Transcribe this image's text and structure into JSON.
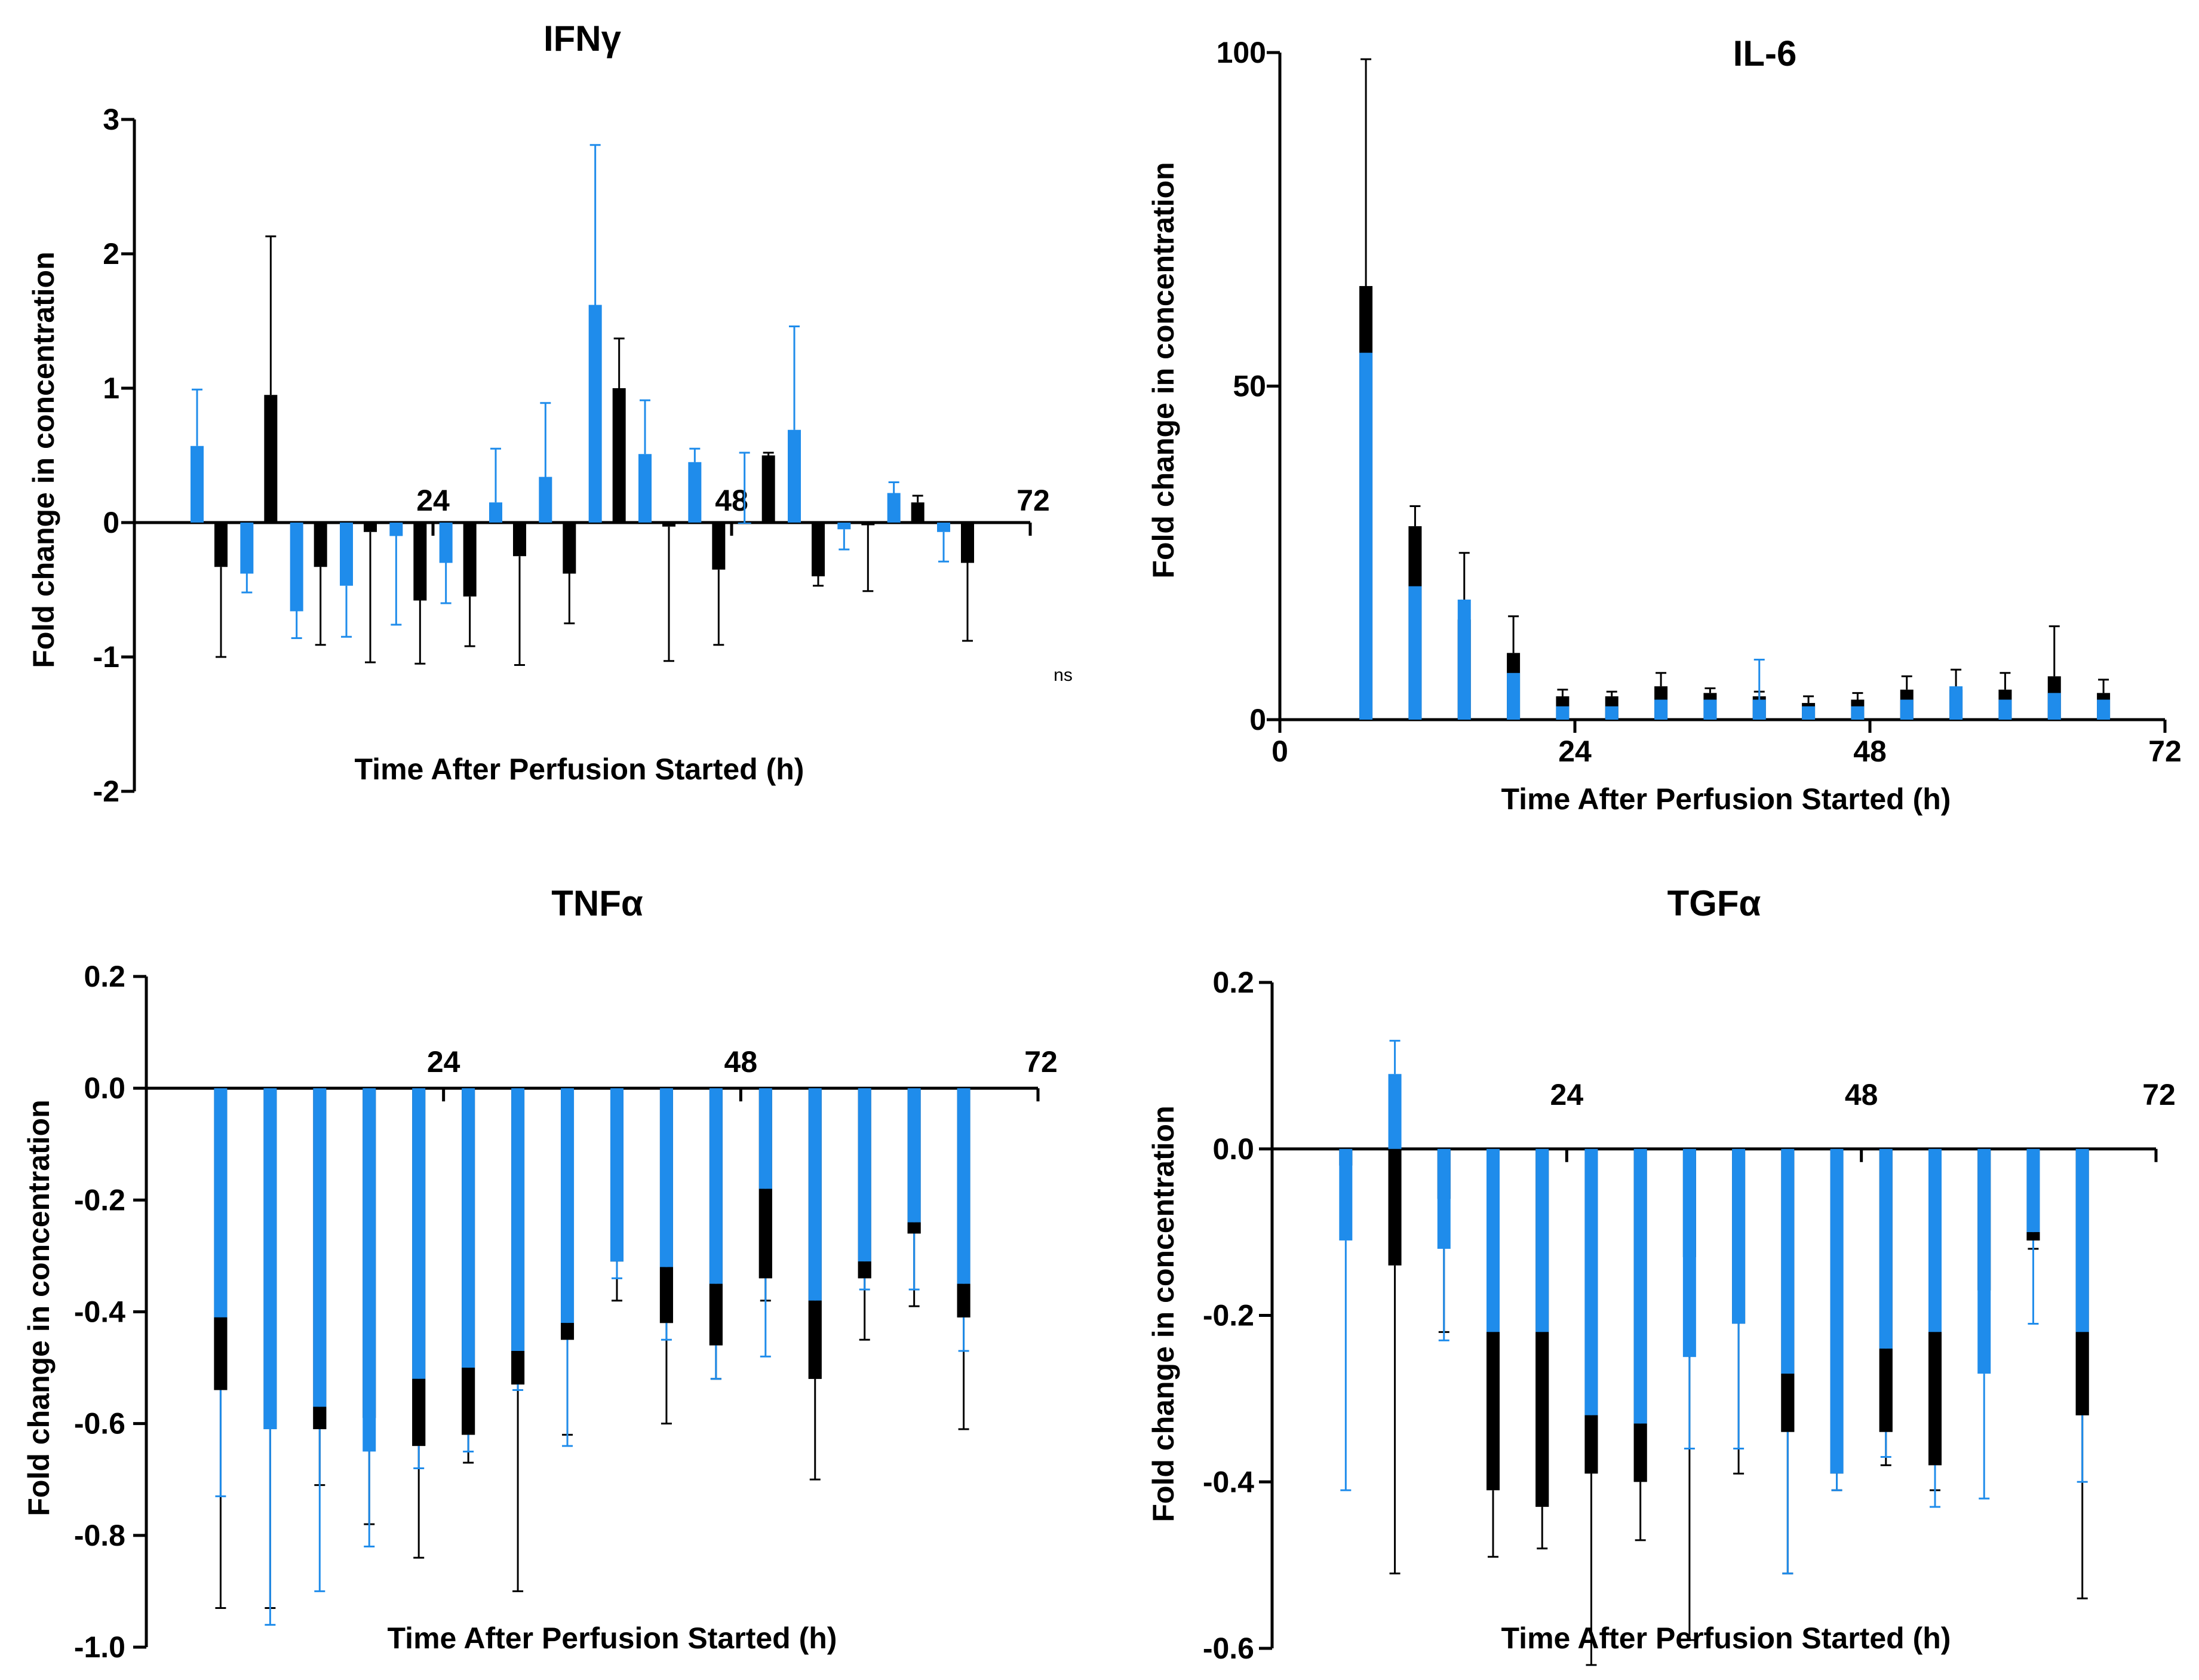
{
  "chart_data": [
    {
      "type": "bar",
      "title": "IFNγ",
      "xlabel": "Time After Perfusion Started (h)",
      "ylabel": "Fold change in concentration",
      "ylim": [
        -2,
        3
      ],
      "xlim": [
        0,
        72
      ],
      "x_ticks": [
        "24",
        "48",
        "72"
      ],
      "y_ticks": [
        "3",
        "2",
        "1",
        "0",
        "-1",
        "-2"
      ],
      "annotation": "ns",
      "colors": {
        "blue": "#1f8ceb",
        "black": "#000000"
      },
      "series": [
        {
          "name": "blue",
          "x": [
            6,
            10,
            14,
            18,
            22,
            26,
            30,
            34,
            38,
            42,
            46,
            50,
            54,
            58,
            62,
            66
          ],
          "values": [
            0.57,
            -0.38,
            -0.66,
            -0.47,
            -0.1,
            -0.3,
            0.15,
            0.34,
            1.62,
            0.51,
            0.45,
            0,
            0.69,
            -0.05,
            0.22,
            -0.07
          ],
          "err": [
            0.42,
            0.14,
            0.2,
            0.38,
            0.66,
            0.3,
            0.4,
            0.55,
            1.19,
            0.4,
            0.1,
            0.52,
            0.77,
            0.15,
            0.08,
            0.22
          ]
        },
        {
          "name": "black",
          "x": [
            6,
            10,
            14,
            18,
            22,
            26,
            30,
            34,
            38,
            42,
            46,
            50,
            54,
            58,
            62,
            66
          ],
          "values": [
            -0.33,
            0.95,
            -0.33,
            -0.07,
            -0.58,
            -0.55,
            -0.25,
            -0.38,
            1.0,
            -0.03,
            -0.35,
            0.5,
            -0.4,
            -0.02,
            0.15,
            -0.3
          ],
          "err": [
            0.67,
            1.18,
            0.58,
            0.97,
            0.47,
            0.37,
            0.81,
            0.37,
            0.37,
            1.0,
            0.56,
            0.02,
            0.07,
            0.49,
            0.05,
            0.58
          ]
        }
      ]
    },
    {
      "type": "bar",
      "title": "IL-6",
      "xlabel": "Time After Perfusion Started (h)",
      "ylabel": "Fold change in concentration",
      "ylim": [
        0,
        100
      ],
      "xlim": [
        0,
        72
      ],
      "x_ticks": [
        "0",
        "24",
        "48",
        "72"
      ],
      "y_ticks": [
        "100",
        "50",
        "0"
      ],
      "colors": {
        "blue": "#1f8ceb",
        "black": "#000000"
      },
      "series": [
        {
          "name": "blue",
          "x": [
            7,
            11,
            15,
            19,
            23,
            27,
            31,
            35,
            39,
            43,
            47,
            51,
            55,
            59,
            63,
            67
          ],
          "values": [
            55,
            20,
            18,
            7,
            2,
            2,
            3,
            3,
            3,
            2,
            2,
            3,
            5,
            3,
            4,
            3
          ],
          "err": [
            0,
            0,
            0,
            0,
            0,
            0,
            0,
            0,
            6,
            0,
            0,
            0,
            0,
            0,
            0,
            0
          ]
        },
        {
          "name": "black",
          "x": [
            7,
            11,
            15,
            19,
            23,
            27,
            31,
            35,
            39,
            43,
            47,
            51,
            55,
            59,
            63,
            67
          ],
          "values": [
            65,
            29,
            15,
            10,
            3.5,
            3.5,
            5,
            4,
            3.5,
            2.5,
            3,
            4.5,
            4.5,
            4.5,
            6.5,
            4
          ],
          "err": [
            34,
            3,
            10,
            5.5,
            1,
            0.7,
            2,
            0.7,
            0.7,
            1,
            1,
            2,
            3,
            2.5,
            7.5,
            2
          ]
        }
      ]
    },
    {
      "type": "bar",
      "title": "TNFα",
      "xlabel": "Time After Perfusion Started (h)",
      "ylabel": "Fold change in concentration",
      "ylim": [
        -1.0,
        0.2
      ],
      "xlim": [
        0,
        72
      ],
      "x_ticks": [
        "24",
        "48",
        "72"
      ],
      "y_ticks": [
        "0.2",
        "0.0",
        "-0.2",
        "-0.4",
        "-0.6",
        "-0.8",
        "-1.0"
      ],
      "colors": {
        "blue": "#1f8ceb",
        "black": "#000000"
      },
      "series": [
        {
          "name": "blue",
          "x": [
            6,
            10,
            14,
            18,
            22,
            26,
            30,
            34,
            38,
            42,
            46,
            50,
            54,
            58,
            62,
            66
          ],
          "values": [
            -0.41,
            -0.61,
            -0.57,
            -0.65,
            -0.52,
            -0.5,
            -0.47,
            -0.42,
            -0.31,
            -0.32,
            -0.35,
            -0.18,
            -0.38,
            -0.31,
            -0.24,
            -0.35
          ],
          "err": [
            0.32,
            0.35,
            0.33,
            0.17,
            0.16,
            0.15,
            0.07,
            0.22,
            0.03,
            0.13,
            0.17,
            0.3,
            0.07,
            0.05,
            0.12,
            0.12
          ]
        },
        {
          "name": "black",
          "x": [
            6,
            10,
            14,
            18,
            22,
            26,
            30,
            34,
            38,
            42,
            46,
            50,
            54,
            58,
            62,
            66
          ],
          "values": [
            -0.54,
            -0.61,
            -0.61,
            -0.59,
            -0.64,
            -0.62,
            -0.53,
            -0.45,
            -0.31,
            -0.42,
            -0.46,
            -0.34,
            -0.52,
            -0.34,
            -0.26,
            -0.41
          ],
          "err": [
            0.39,
            0.32,
            0.1,
            0.19,
            0.2,
            0.05,
            0.37,
            0.17,
            0.07,
            0.18,
            0.06,
            0.04,
            0.18,
            0.11,
            0.13,
            0.2
          ]
        }
      ]
    },
    {
      "type": "bar",
      "title": "TGFα",
      "xlabel": "Time After Perfusion Started (h)",
      "ylabel": "Fold change in concentration",
      "ylim": [
        -0.6,
        0.2
      ],
      "xlim": [
        0,
        72
      ],
      "x_ticks": [
        "24",
        "48",
        "72"
      ],
      "y_ticks": [
        "0.2",
        "0.0",
        "-0.2",
        "-0.4",
        "-0.6"
      ],
      "colors": {
        "blue": "#1f8ceb",
        "black": "#000000"
      },
      "series": [
        {
          "name": "blue",
          "x": [
            6,
            10,
            14,
            18,
            22,
            26,
            30,
            34,
            38,
            42,
            46,
            50,
            54,
            58,
            62,
            66
          ],
          "values": [
            -0.11,
            0.09,
            -0.12,
            -0.22,
            -0.22,
            -0.32,
            -0.33,
            -0.25,
            -0.21,
            -0.27,
            -0.39,
            -0.24,
            -0.22,
            -0.27,
            -0.1,
            -0.22
          ],
          "err": [
            0.3,
            0.04,
            0.11,
            0.04,
            0.04,
            0.02,
            0.06,
            0.11,
            0.15,
            0.24,
            0.02,
            0.13,
            0.21,
            0.15,
            0.11,
            0.18
          ]
        },
        {
          "name": "black",
          "x": [
            6,
            10,
            14,
            18,
            22,
            26,
            30,
            34,
            38,
            42,
            46,
            50,
            54,
            58,
            62,
            66
          ],
          "values": [
            -0.02,
            -0.14,
            -0.06,
            -0.41,
            -0.43,
            -0.39,
            -0.4,
            -0.13,
            -0.21,
            -0.34,
            -0.39,
            -0.34,
            -0.38,
            -0.17,
            -0.11,
            -0.32
          ],
          "err": [
            0.01,
            0.37,
            0.16,
            0.08,
            0.05,
            0.23,
            0.07,
            0.46,
            0.18,
            0.17,
            0.02,
            0.04,
            0.03,
            0.02,
            0.01,
            0.22
          ]
        }
      ]
    }
  ]
}
